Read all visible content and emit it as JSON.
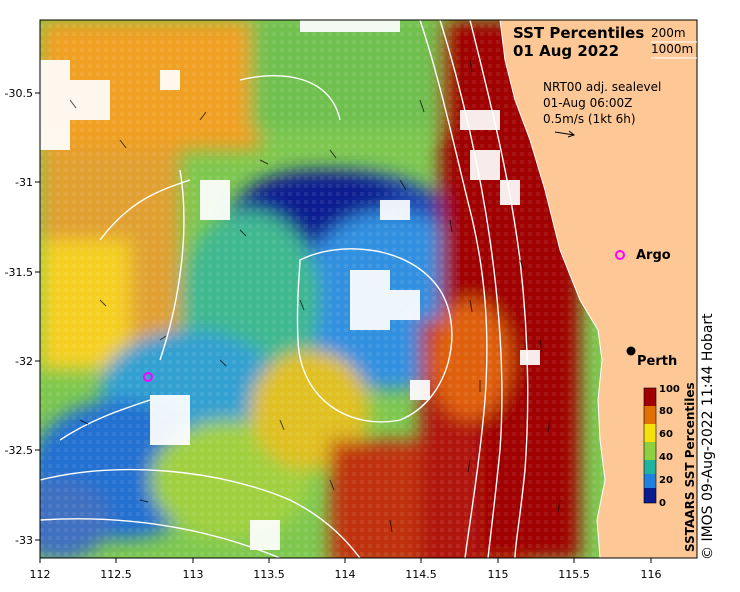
{
  "title": {
    "line1": "SST Percentiles",
    "line2": "01 Aug 2022"
  },
  "depth_legend": {
    "contour1": "200m",
    "contour2": "1000m"
  },
  "current_info": {
    "line1": "NRT00 adj. sealevel",
    "line2": "01-Aug 06:00Z",
    "line3": "0.5m/s (1kt 6h)"
  },
  "places": [
    {
      "name": "Argo",
      "marker": "magenta-circle"
    },
    {
      "name": "Perth",
      "marker": "black-dot"
    }
  ],
  "axes": {
    "x_ticks": [
      "112",
      "112.5",
      "113",
      "113.5",
      "114",
      "114.5",
      "115",
      "115.5",
      "116"
    ],
    "y_ticks": [
      "-30.5",
      "-31",
      "-31.5",
      "-32",
      "-32.5",
      "-33"
    ]
  },
  "colorbar": {
    "label": "SSTAARS SST Percentiles",
    "ticks": [
      "100",
      "80",
      "60",
      "40",
      "20",
      "0"
    ],
    "colors": [
      "#a00000",
      "#e07000",
      "#f5e010",
      "#8fd040",
      "#20b4a0",
      "#2080e0",
      "#0a1c90"
    ]
  },
  "credit": "© IMOS 09-Aug-2022 11:44 Hobart",
  "colors": {
    "land": "#fdc896",
    "percentile_high": "#a00000",
    "percentile_low": "#0a1c90"
  }
}
